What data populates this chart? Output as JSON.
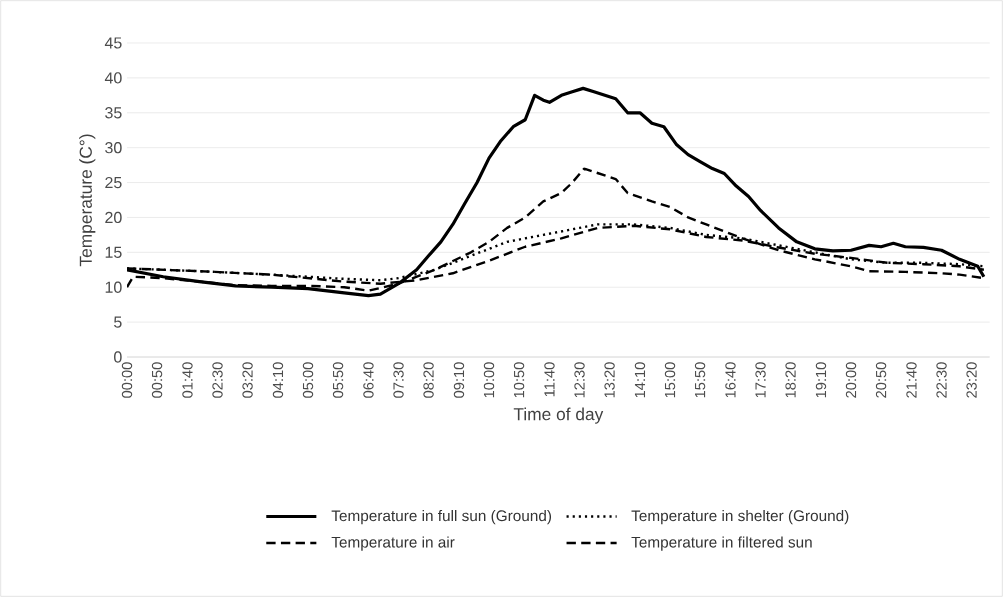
{
  "chart_data": {
    "type": "line",
    "xlabel": "Time of day",
    "ylabel": "Temperature (C°)",
    "xlim": [
      0,
      23.83
    ],
    "ylim": [
      0,
      45
    ],
    "yticks": [
      0,
      5,
      10,
      15,
      20,
      25,
      30,
      35,
      40,
      45
    ],
    "xticks": [
      {
        "value": 0,
        "label": "00:00"
      },
      {
        "value": 0.83,
        "label": "00:50"
      },
      {
        "value": 1.67,
        "label": "01:40"
      },
      {
        "value": 2.5,
        "label": "02:30"
      },
      {
        "value": 3.33,
        "label": "03:20"
      },
      {
        "value": 4.17,
        "label": "04:10"
      },
      {
        "value": 5,
        "label": "05:00"
      },
      {
        "value": 5.83,
        "label": "05:50"
      },
      {
        "value": 6.67,
        "label": "06:40"
      },
      {
        "value": 7.5,
        "label": "07:30"
      },
      {
        "value": 8.33,
        "label": "08:20"
      },
      {
        "value": 9.17,
        "label": "09:10"
      },
      {
        "value": 10,
        "label": "10:00"
      },
      {
        "value": 10.83,
        "label": "10:50"
      },
      {
        "value": 11.67,
        "label": "11:40"
      },
      {
        "value": 12.5,
        "label": "12:30"
      },
      {
        "value": 13.33,
        "label": "13:20"
      },
      {
        "value": 14.17,
        "label": "14:10"
      },
      {
        "value": 15,
        "label": "15:00"
      },
      {
        "value": 15.83,
        "label": "15:50"
      },
      {
        "value": 16.67,
        "label": "16:40"
      },
      {
        "value": 17.5,
        "label": "17:30"
      },
      {
        "value": 18.33,
        "label": "18:20"
      },
      {
        "value": 19.17,
        "label": "19:10"
      },
      {
        "value": 20,
        "label": "20:00"
      },
      {
        "value": 20.83,
        "label": "20:50"
      },
      {
        "value": 21.67,
        "label": "21:40"
      },
      {
        "value": 22.5,
        "label": "22:30"
      },
      {
        "value": 23.33,
        "label": "23:20"
      }
    ],
    "grid": "y",
    "legend": "bottom",
    "series": [
      {
        "name": "Temperature in full sun (Ground)",
        "color": "#000000",
        "line_style": "solid",
        "x": [
          0,
          1,
          2,
          3,
          4,
          5,
          6,
          6.67,
          7,
          7.5,
          8,
          8.33,
          8.67,
          9,
          9.33,
          9.67,
          10,
          10.33,
          10.67,
          11,
          11.26,
          11.5,
          11.67,
          12,
          12.3,
          12.6,
          12.9,
          13.2,
          13.5,
          13.83,
          14.17,
          14.5,
          14.83,
          15.17,
          15.5,
          15.83,
          16.17,
          16.5,
          16.83,
          17.17,
          17.5,
          18,
          18.5,
          19,
          19.5,
          20,
          20.5,
          20.83,
          21.17,
          21.5,
          22,
          22.5,
          23,
          23.5,
          23.67
        ],
        "values": [
          12.5,
          11.5,
          10.8,
          10.2,
          10.0,
          9.8,
          9.2,
          8.8,
          9.0,
          10.5,
          12.5,
          14.5,
          16.5,
          19,
          22,
          25,
          28.5,
          31,
          33,
          34,
          37.5,
          36.8,
          36.5,
          37.5,
          38,
          38.5,
          38,
          37.5,
          37,
          35,
          35,
          33.5,
          33,
          30.5,
          29,
          28,
          27,
          26.3,
          24.5,
          23,
          21,
          18.5,
          16.5,
          15.5,
          15.2,
          15.3,
          16,
          15.8,
          16.3,
          15.8,
          15.7,
          15.3,
          14,
          13,
          11.5
        ]
      },
      {
        "name": "Temperature in shelter (Ground)",
        "color": "#000000",
        "line_style": "dotted",
        "x": [
          0,
          2,
          4,
          6,
          7,
          7.5,
          8.5,
          9.5,
          10.5,
          11.5,
          12.5,
          13,
          14,
          15,
          16,
          17,
          18,
          19,
          20,
          21,
          22,
          23,
          23.67
        ],
        "values": [
          12.7,
          12.3,
          11.8,
          11.2,
          11.0,
          11.3,
          12.5,
          14.5,
          16.5,
          17.5,
          18.5,
          19,
          19,
          18.5,
          17.5,
          17,
          16,
          15,
          14,
          13.5,
          13.5,
          13.3,
          13
        ]
      },
      {
        "name": "Temperature in air",
        "color": "#000000",
        "line_style": "dashed",
        "x": [
          0,
          2,
          4,
          6,
          7,
          8,
          9,
          10,
          11,
          12,
          13,
          14,
          15,
          16,
          17,
          18,
          19,
          20,
          21,
          22,
          23,
          23.67
        ],
        "values": [
          12.7,
          12.3,
          11.8,
          10.8,
          10.5,
          11,
          12,
          13.8,
          15.8,
          17,
          18.5,
          18.8,
          18.3,
          17.2,
          16.7,
          15.7,
          14.8,
          14.2,
          13.5,
          13.3,
          13,
          12.5
        ]
      },
      {
        "name": "Temperature in filtered sun",
        "color": "#000000",
        "line_style": "dashed",
        "x": [
          0,
          0.17,
          1,
          2,
          3,
          4,
          5,
          6,
          6.67,
          7.5,
          8.5,
          9.5,
          10,
          10.5,
          11,
          11.5,
          12,
          12.3,
          12.63,
          13.5,
          13.83,
          14.5,
          15,
          15.5,
          16,
          16.5,
          17,
          18,
          19,
          20,
          20.5,
          21.5,
          22.5,
          23,
          23.67
        ],
        "values": [
          10,
          11.5,
          11.3,
          10.8,
          10.3,
          10.2,
          10.2,
          10,
          9.5,
          10.5,
          12.5,
          15,
          16.5,
          18.5,
          20,
          22.3,
          23.5,
          25,
          27,
          25.5,
          23.5,
          22.3,
          21.5,
          20,
          19,
          18,
          17,
          15.3,
          14,
          13,
          12.3,
          12.2,
          12,
          11.8,
          11.3
        ]
      }
    ]
  }
}
